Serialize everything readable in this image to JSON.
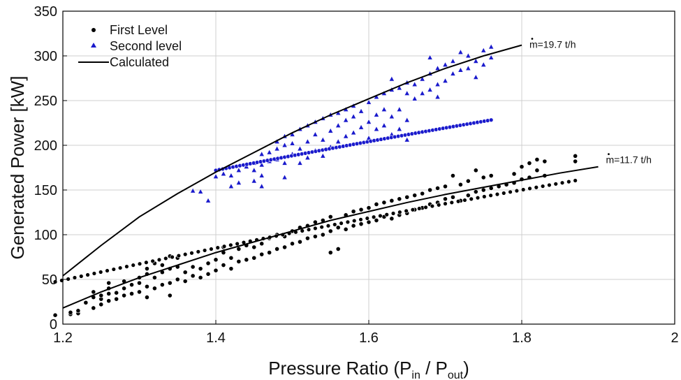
{
  "chart_data": {
    "type": "scatter",
    "xlabel": {
      "base": "Pressure Ratio (P",
      "sub1": "in",
      "mid": " / P",
      "sub2": "out",
      "end": ")"
    },
    "ylabel": "Generated Power [kW]",
    "xlim": [
      1.2,
      2.0
    ],
    "ylim": [
      0,
      350
    ],
    "x_ticks": [
      "1.2",
      "1.4",
      "1.6",
      "1.8",
      "2"
    ],
    "y_ticks": [
      "0",
      "50",
      "100",
      "150",
      "200",
      "250",
      "300",
      "350"
    ],
    "grid": true,
    "legend_position": "top-left",
    "legend": [
      "First Level",
      "Second level",
      "Calculated"
    ],
    "annotations": [
      {
        "text": "m=19.7 t/h",
        "x": 1.81,
        "y": 309
      },
      {
        "text": "m=11.7 t/h",
        "x": 1.91,
        "y": 180
      }
    ],
    "series": [
      {
        "name": "First Level",
        "marker": "circle",
        "color": "#000000",
        "trend": {
          "x0": 1.19,
          "x1": 1.87,
          "a": 85,
          "b": 0.94
        },
        "points": [
          [
            1.19,
            10
          ],
          [
            1.21,
            11
          ],
          [
            1.21,
            13
          ],
          [
            1.22,
            12
          ],
          [
            1.22,
            15
          ],
          [
            1.23,
            24
          ],
          [
            1.24,
            18
          ],
          [
            1.24,
            30
          ],
          [
            1.24,
            36
          ],
          [
            1.25,
            22
          ],
          [
            1.25,
            28
          ],
          [
            1.25,
            32
          ],
          [
            1.26,
            26
          ],
          [
            1.26,
            34
          ],
          [
            1.26,
            40
          ],
          [
            1.26,
            46
          ],
          [
            1.27,
            28
          ],
          [
            1.27,
            35
          ],
          [
            1.28,
            32
          ],
          [
            1.28,
            40
          ],
          [
            1.28,
            48
          ],
          [
            1.29,
            34
          ],
          [
            1.29,
            44
          ],
          [
            1.3,
            36
          ],
          [
            1.3,
            46
          ],
          [
            1.3,
            52
          ],
          [
            1.31,
            30
          ],
          [
            1.31,
            42
          ],
          [
            1.31,
            56
          ],
          [
            1.31,
            62
          ],
          [
            1.32,
            40
          ],
          [
            1.32,
            52
          ],
          [
            1.32,
            68
          ],
          [
            1.33,
            44
          ],
          [
            1.33,
            58
          ],
          [
            1.33,
            66
          ],
          [
            1.34,
            32
          ],
          [
            1.34,
            46
          ],
          [
            1.34,
            62
          ],
          [
            1.34,
            76
          ],
          [
            1.35,
            50
          ],
          [
            1.35,
            64
          ],
          [
            1.35,
            74
          ],
          [
            1.36,
            48
          ],
          [
            1.36,
            58
          ],
          [
            1.37,
            54
          ],
          [
            1.37,
            64
          ],
          [
            1.38,
            52
          ],
          [
            1.38,
            62
          ],
          [
            1.39,
            56
          ],
          [
            1.39,
            68
          ],
          [
            1.4,
            60
          ],
          [
            1.4,
            72
          ],
          [
            1.41,
            66
          ],
          [
            1.41,
            80
          ],
          [
            1.41,
            86
          ],
          [
            1.42,
            62
          ],
          [
            1.42,
            74
          ],
          [
            1.43,
            70
          ],
          [
            1.43,
            84
          ],
          [
            1.44,
            72
          ],
          [
            1.44,
            88
          ],
          [
            1.45,
            74
          ],
          [
            1.45,
            86
          ],
          [
            1.46,
            78
          ],
          [
            1.46,
            90
          ],
          [
            1.47,
            80
          ],
          [
            1.47,
            96
          ],
          [
            1.48,
            84
          ],
          [
            1.48,
            100
          ],
          [
            1.49,
            86
          ],
          [
            1.49,
            98
          ],
          [
            1.5,
            90
          ],
          [
            1.5,
            104
          ],
          [
            1.51,
            92
          ],
          [
            1.51,
            108
          ],
          [
            1.52,
            96
          ],
          [
            1.52,
            110
          ],
          [
            1.53,
            98
          ],
          [
            1.53,
            114
          ],
          [
            1.54,
            100
          ],
          [
            1.54,
            116
          ],
          [
            1.55,
            80
          ],
          [
            1.55,
            104
          ],
          [
            1.55,
            120
          ],
          [
            1.56,
            84
          ],
          [
            1.56,
            108
          ],
          [
            1.57,
            106
          ],
          [
            1.57,
            122
          ],
          [
            1.58,
            110
          ],
          [
            1.58,
            126
          ],
          [
            1.59,
            112
          ],
          [
            1.59,
            128
          ],
          [
            1.6,
            114
          ],
          [
            1.6,
            130
          ],
          [
            1.61,
            116
          ],
          [
            1.61,
            134
          ],
          [
            1.62,
            120
          ],
          [
            1.62,
            136
          ],
          [
            1.63,
            118
          ],
          [
            1.63,
            138
          ],
          [
            1.64,
            122
          ],
          [
            1.64,
            140
          ],
          [
            1.65,
            124
          ],
          [
            1.65,
            142
          ],
          [
            1.66,
            128
          ],
          [
            1.66,
            144
          ],
          [
            1.67,
            130
          ],
          [
            1.67,
            146
          ],
          [
            1.68,
            134
          ],
          [
            1.68,
            150
          ],
          [
            1.69,
            136
          ],
          [
            1.69,
            152
          ],
          [
            1.7,
            140
          ],
          [
            1.7,
            154
          ],
          [
            1.71,
            142
          ],
          [
            1.71,
            166
          ],
          [
            1.72,
            138
          ],
          [
            1.72,
            156
          ],
          [
            1.73,
            144
          ],
          [
            1.73,
            160
          ],
          [
            1.74,
            148
          ],
          [
            1.74,
            172
          ],
          [
            1.75,
            150
          ],
          [
            1.75,
            164
          ],
          [
            1.76,
            152
          ],
          [
            1.76,
            166
          ],
          [
            1.77,
            154
          ],
          [
            1.78,
            156
          ],
          [
            1.79,
            158
          ],
          [
            1.79,
            168
          ],
          [
            1.8,
            162
          ],
          [
            1.8,
            176
          ],
          [
            1.81,
            164
          ],
          [
            1.81,
            180
          ],
          [
            1.82,
            172
          ],
          [
            1.82,
            184
          ],
          [
            1.83,
            166
          ],
          [
            1.83,
            182
          ],
          [
            1.87,
            182
          ],
          [
            1.87,
            188
          ]
        ]
      },
      {
        "name": "Second level",
        "marker": "triangle",
        "color": "#1a1acc",
        "trend": {
          "x0": 1.4,
          "x1": 1.76,
          "a": 172,
          "b": 0.9
        },
        "points": [
          [
            1.37,
            149
          ],
          [
            1.38,
            148
          ],
          [
            1.39,
            138
          ],
          [
            1.4,
            165
          ],
          [
            1.41,
            168
          ],
          [
            1.42,
            154
          ],
          [
            1.42,
            166
          ],
          [
            1.43,
            158
          ],
          [
            1.43,
            172
          ],
          [
            1.44,
            176
          ],
          [
            1.45,
            160
          ],
          [
            1.45,
            172
          ],
          [
            1.45,
            180
          ],
          [
            1.46,
            154
          ],
          [
            1.46,
            166
          ],
          [
            1.46,
            178
          ],
          [
            1.46,
            190
          ],
          [
            1.47,
            182
          ],
          [
            1.47,
            192
          ],
          [
            1.48,
            184
          ],
          [
            1.48,
            196
          ],
          [
            1.48,
            204
          ],
          [
            1.49,
            164
          ],
          [
            1.49,
            180
          ],
          [
            1.49,
            200
          ],
          [
            1.49,
            210
          ],
          [
            1.5,
            190
          ],
          [
            1.5,
            202
          ],
          [
            1.5,
            212
          ],
          [
            1.51,
            180
          ],
          [
            1.51,
            196
          ],
          [
            1.51,
            218
          ],
          [
            1.52,
            186
          ],
          [
            1.52,
            204
          ],
          [
            1.52,
            222
          ],
          [
            1.53,
            194
          ],
          [
            1.53,
            212
          ],
          [
            1.53,
            226
          ],
          [
            1.54,
            188
          ],
          [
            1.54,
            206
          ],
          [
            1.54,
            230
          ],
          [
            1.55,
            198
          ],
          [
            1.55,
            216
          ],
          [
            1.55,
            234
          ],
          [
            1.56,
            204
          ],
          [
            1.56,
            222
          ],
          [
            1.56,
            236
          ],
          [
            1.57,
            210
          ],
          [
            1.57,
            228
          ],
          [
            1.57,
            240
          ],
          [
            1.58,
            214
          ],
          [
            1.58,
            232
          ],
          [
            1.58,
            244
          ],
          [
            1.59,
            220
          ],
          [
            1.59,
            238
          ],
          [
            1.6,
            208
          ],
          [
            1.6,
            226
          ],
          [
            1.6,
            248
          ],
          [
            1.61,
            218
          ],
          [
            1.61,
            234
          ],
          [
            1.61,
            254
          ],
          [
            1.62,
            222
          ],
          [
            1.62,
            240
          ],
          [
            1.62,
            258
          ],
          [
            1.63,
            212
          ],
          [
            1.63,
            232
          ],
          [
            1.63,
            262
          ],
          [
            1.63,
            274
          ],
          [
            1.64,
            218
          ],
          [
            1.64,
            240
          ],
          [
            1.64,
            264
          ],
          [
            1.65,
            206
          ],
          [
            1.65,
            228
          ],
          [
            1.65,
            258
          ],
          [
            1.65,
            270
          ],
          [
            1.66,
            252
          ],
          [
            1.66,
            268
          ],
          [
            1.67,
            258
          ],
          [
            1.67,
            274
          ],
          [
            1.68,
            262
          ],
          [
            1.68,
            280
          ],
          [
            1.68,
            298
          ],
          [
            1.69,
            268
          ],
          [
            1.69,
            286
          ],
          [
            1.69,
            254
          ],
          [
            1.7,
            272
          ],
          [
            1.7,
            290
          ],
          [
            1.71,
            280
          ],
          [
            1.71,
            294
          ],
          [
            1.72,
            284
          ],
          [
            1.72,
            304
          ],
          [
            1.73,
            286
          ],
          [
            1.73,
            300
          ],
          [
            1.74,
            276
          ],
          [
            1.74,
            294
          ],
          [
            1.75,
            290
          ],
          [
            1.75,
            306
          ],
          [
            1.76,
            298
          ],
          [
            1.76,
            310
          ]
        ]
      },
      {
        "name": "Calculated",
        "marker": "line",
        "color": "#000000",
        "curves": [
          {
            "label": "m=19.7 t/h",
            "x": [
              1.2,
              1.25,
              1.3,
              1.35,
              1.4,
              1.45,
              1.5,
              1.55,
              1.6,
              1.65,
              1.7,
              1.75,
              1.8
            ],
            "y": [
              54,
              88,
              120,
              146,
              170,
              192,
              214,
              234,
              252,
              270,
              286,
              300,
              312
            ]
          },
          {
            "label": "m=11.7 t/h",
            "x": [
              1.2,
              1.25,
              1.3,
              1.35,
              1.4,
              1.45,
              1.5,
              1.55,
              1.6,
              1.65,
              1.7,
              1.75,
              1.8,
              1.85,
              1.9
            ],
            "y": [
              18,
              36,
              52,
              66,
              80,
              92,
              104,
              116,
              126,
              136,
              145,
              153,
              161,
              169,
              176
            ]
          }
        ]
      }
    ]
  }
}
